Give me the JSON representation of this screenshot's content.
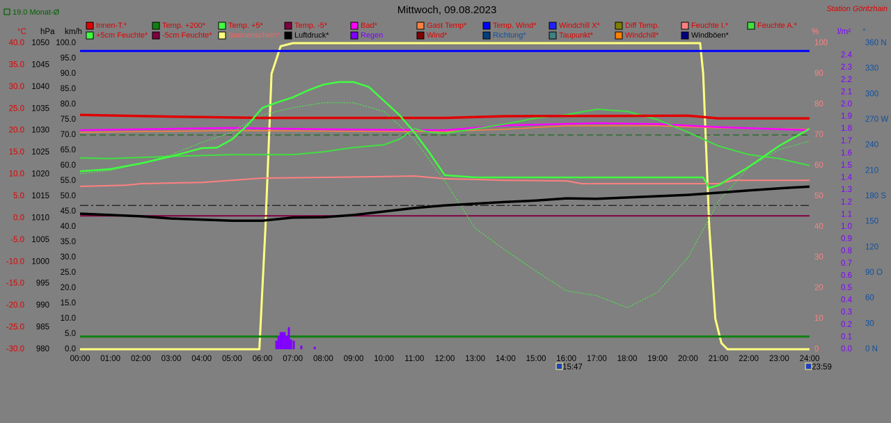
{
  "chart_data": {
    "type": "line",
    "title": "Mittwoch, 09.08.2023",
    "station": "Station Göritzhain",
    "xlim": [
      0,
      24
    ],
    "xticks": [
      {
        "value": 0,
        "label": "00:00"
      },
      {
        "value": 1,
        "label": "01:00"
      },
      {
        "value": 2,
        "label": "02:00"
      },
      {
        "value": 3,
        "label": "03:00"
      },
      {
        "value": 4,
        "label": "04:00"
      },
      {
        "value": 5,
        "label": "05:00"
      },
      {
        "value": 6,
        "label": "06:00"
      },
      {
        "value": 7,
        "label": "07:00"
      },
      {
        "value": 8,
        "label": "08:00"
      },
      {
        "value": 9,
        "label": "09:00"
      },
      {
        "value": 10,
        "label": "10:00"
      },
      {
        "value": 11,
        "label": "11:00"
      },
      {
        "value": 12,
        "label": "12:00"
      },
      {
        "value": 13,
        "label": "13:00"
      },
      {
        "value": 14,
        "label": "14:00"
      },
      {
        "value": 15,
        "label": "15:00"
      },
      {
        "value": 16,
        "label": "16:00"
      },
      {
        "value": 17,
        "label": "17:00"
      },
      {
        "value": 18,
        "label": "18:00"
      },
      {
        "value": 19,
        "label": "19:00"
      },
      {
        "value": 20,
        "label": "20:00"
      },
      {
        "value": 21,
        "label": "21:00"
      },
      {
        "value": 22,
        "label": "22:00"
      },
      {
        "value": 23,
        "label": "23:00"
      },
      {
        "value": 24,
        "label": "24:00"
      }
    ],
    "y_axes": [
      {
        "id": "c",
        "label": "°C",
        "side": "left",
        "color": "#e00000",
        "ylim": [
          -30,
          40
        ],
        "yticks": [
          {
            "value": 40,
            "label": "40.0"
          },
          {
            "value": 35,
            "label": "35.0"
          },
          {
            "value": 30,
            "label": "30.0"
          },
          {
            "value": 25,
            "label": "25.0"
          },
          {
            "value": 20,
            "label": "20.0"
          },
          {
            "value": 15,
            "label": "15.0"
          },
          {
            "value": 10,
            "label": "10.0"
          },
          {
            "value": 5,
            "label": "5.0"
          },
          {
            "value": 0,
            "label": "0.0"
          },
          {
            "value": -5,
            "label": "-5.0"
          },
          {
            "value": -10,
            "label": "-10.0"
          },
          {
            "value": -15,
            "label": "-15.0"
          },
          {
            "value": -20,
            "label": "-20.0"
          },
          {
            "value": -25,
            "label": "-25.0"
          },
          {
            "value": -30,
            "label": "-30.0"
          }
        ]
      },
      {
        "id": "hpa",
        "label": "hPa",
        "side": "left",
        "color": "#000000",
        "ylim": [
          980,
          1050
        ],
        "yticks": [
          1050,
          1045,
          1040,
          1035,
          1030,
          1025,
          1020,
          1015,
          1010,
          1005,
          1000,
          995,
          990,
          985,
          980
        ]
      },
      {
        "id": "kmh",
        "label": "km/h",
        "side": "left",
        "color": "#000000",
        "ylim": [
          0,
          100
        ],
        "yticks": [
          {
            "value": 100,
            "label": "100.0"
          },
          {
            "value": 95,
            "label": "95.0"
          },
          {
            "value": 90,
            "label": "90.0"
          },
          {
            "value": 85,
            "label": "85.0"
          },
          {
            "value": 80,
            "label": "80.0"
          },
          {
            "value": 75,
            "label": "75.0"
          },
          {
            "value": 70,
            "label": "70.0"
          },
          {
            "value": 65,
            "label": "65.0"
          },
          {
            "value": 60,
            "label": "60.0"
          },
          {
            "value": 55,
            "label": "55.0"
          },
          {
            "value": 50,
            "label": "50.0"
          },
          {
            "value": 45,
            "label": "45.0"
          },
          {
            "value": 40,
            "label": "40.0"
          },
          {
            "value": 35,
            "label": "35.0"
          },
          {
            "value": 30,
            "label": "30.0"
          },
          {
            "value": 25,
            "label": "25.0"
          },
          {
            "value": 20,
            "label": "20.0"
          },
          {
            "value": 15,
            "label": "15.0"
          },
          {
            "value": 10,
            "label": "10.0"
          },
          {
            "value": 5,
            "label": "5.0"
          },
          {
            "value": 0,
            "label": "0.0"
          }
        ]
      },
      {
        "id": "pct",
        "label": "%",
        "side": "right",
        "color": "#ff8080",
        "ylim": [
          0,
          100
        ],
        "yticks": [
          100,
          90,
          80,
          70,
          60,
          50,
          40,
          30,
          20,
          10,
          0
        ]
      },
      {
        "id": "rain",
        "label": "l/m²",
        "side": "right",
        "color": "#8000ff",
        "ylim": [
          0,
          2.5
        ],
        "yticks": [
          2.4,
          2.3,
          2.2,
          2.1,
          {
            "value": 2,
            "label": "2.0"
          },
          1.9,
          1.8,
          1.7,
          1.6,
          1.5,
          1.4,
          1.3,
          1.2,
          1.1,
          {
            "value": 1,
            "label": "1.0"
          },
          0.9,
          0.8,
          0.7,
          0.6,
          0.5,
          0.4,
          0.3,
          0.2,
          0.1,
          {
            "value": 0,
            "label": "0.0"
          }
        ]
      },
      {
        "id": "deg",
        "label": "°",
        "side": "right",
        "color": "#1050a0",
        "ylim": [
          0,
          360
        ],
        "yticks": [
          {
            "value": 360,
            "label": "360 N"
          },
          330,
          300,
          {
            "value": 270,
            "label": "270 W"
          },
          240,
          210,
          {
            "value": 180,
            "label": "180 S"
          },
          150,
          120,
          {
            "value": 90,
            "label": "90  O"
          },
          60,
          30,
          {
            "value": 0,
            "label": "0   N"
          }
        ]
      }
    ],
    "reference_lines": [
      {
        "label": "19.0 Monat-Ø",
        "value": 19.0,
        "axis": "c",
        "color": "#006000",
        "dash": "9 5"
      },
      {
        "value": 1012.9,
        "axis": "hpa",
        "color": "#000000",
        "dash": "12 4 3 4"
      }
    ],
    "series": [
      {
        "name": "Innen-T.*",
        "color": "#e00000",
        "label_color": "#e00000",
        "axis": "c",
        "width": 3.5,
        "x": [
          0,
          3,
          6,
          12,
          14,
          20,
          21,
          24
        ],
        "values": [
          23.6,
          23.2,
          22.9,
          22.9,
          23.3,
          23.4,
          22.8,
          22.8
        ]
      },
      {
        "name": "Temp. +200*",
        "color": "#108010",
        "label_color": "#e00000",
        "axis": "c",
        "width": 3,
        "x": [
          0,
          24
        ],
        "values": [
          -27.1,
          -27.1
        ]
      },
      {
        "name": "Temp. +5*",
        "color": "#40ff40",
        "label_color": "#e00000",
        "axis": "c",
        "width": 2.5,
        "x": [
          0,
          1,
          2,
          3,
          4,
          4.5,
          5,
          5.5,
          6,
          6.5,
          7,
          7.5,
          8,
          8.5,
          9,
          9.5,
          10,
          10.5,
          11,
          11.5,
          12,
          13,
          20.5,
          20.7,
          21,
          22,
          23,
          24
        ],
        "values": [
          10.7,
          11.2,
          12.5,
          14.1,
          16.0,
          16.1,
          18.0,
          21.2,
          25.2,
          26.5,
          27.6,
          29.2,
          30.5,
          31.1,
          31.1,
          30.0,
          26.8,
          23.6,
          19.6,
          14.9,
          9.8,
          9.3,
          9.3,
          6.9,
          7.5,
          11.7,
          16.5,
          20.4
        ]
      },
      {
        "name": "Temp. -5*",
        "color": "#800040",
        "label_color": "#e00000",
        "axis": "c",
        "width": 2,
        "x": [
          0,
          24
        ],
        "values": [
          0.5,
          0.5
        ]
      },
      {
        "name": "Bad*",
        "color": "#ff00ff",
        "label_color": "#e00000",
        "axis": "c",
        "width": 2.5,
        "x": [
          0,
          5,
          8,
          12,
          14,
          17,
          19,
          21,
          24
        ],
        "values": [
          20.1,
          20.6,
          20.3,
          20.1,
          21.2,
          21.7,
          21.5,
          20.8,
          20.1
        ]
      },
      {
        "name": "Gast Temp*",
        "color": "#ff8040",
        "label_color": "#e00000",
        "axis": "c",
        "width": 1.5,
        "x": [
          0,
          5,
          10,
          12,
          14,
          16,
          19,
          21,
          24
        ],
        "values": [
          19.6,
          20.0,
          19.8,
          19.8,
          20.3,
          21.1,
          21.1,
          20.6,
          20.3
        ]
      },
      {
        "name": "Temp. Wind*",
        "color": "#0000ff",
        "label_color": "#e00000",
        "axis": "c",
        "width": 3,
        "x": [
          0,
          24
        ],
        "values": [
          38.2,
          38.2
        ]
      },
      {
        "name": "Windchill X*",
        "color": "#2020ff",
        "label_color": "#e00000",
        "axis": "c"
      },
      {
        "name": "Diff Temp.",
        "color": "#808000",
        "label_color": "#e00000",
        "axis": "c"
      },
      {
        "name": "Feuchte I.*",
        "color": "#ff8080",
        "label_color": "#e00000",
        "axis": "pct",
        "width": 2,
        "x": [
          0,
          1.5,
          2,
          4,
          5,
          6,
          10,
          11,
          12,
          14,
          16,
          16.5,
          21,
          21.5,
          24
        ],
        "values": [
          53.2,
          53.6,
          54.1,
          54.5,
          55.2,
          55.9,
          56.4,
          56.6,
          55.7,
          55.2,
          55.0,
          54.1,
          54.1,
          55.2,
          55.2
        ]
      },
      {
        "name": "Feuchte A.*",
        "color": "#40e040",
        "label_color": "#e00000",
        "axis": "pct",
        "width": 2,
        "x": [
          0,
          1,
          3,
          5,
          7,
          8,
          9,
          10,
          10.5,
          11,
          11.5,
          12,
          13,
          14,
          15,
          16,
          17,
          18,
          19,
          20,
          21,
          22,
          23,
          24
        ],
        "values": [
          62.5,
          62.3,
          63.0,
          63.6,
          63.6,
          64.5,
          65.9,
          66.8,
          68.6,
          72.0,
          70.9,
          70.5,
          72.0,
          73.6,
          75.5,
          76.6,
          78.4,
          77.7,
          75.0,
          70.9,
          66.4,
          63.6,
          62.3,
          60.0
        ]
      },
      {
        "name": "+5cm Feuchte*",
        "color": "#40ff40",
        "label_color": "#e00000",
        "axis": "pct",
        "width": 1,
        "dash": "2 2",
        "x": [
          0,
          1,
          2,
          3,
          4,
          5,
          6,
          7,
          8,
          9,
          10,
          11,
          12,
          13,
          14,
          15,
          16,
          17,
          18,
          19,
          20,
          21,
          22,
          23,
          24
        ],
        "values": [
          57.3,
          58.4,
          60.7,
          63.6,
          67.5,
          70.9,
          76.6,
          78.9,
          80.5,
          80.5,
          77.7,
          68.6,
          55.0,
          39.5,
          32.3,
          25.5,
          19.1,
          17.5,
          13.6,
          18.6,
          30.0,
          48.2,
          59.5,
          65.2,
          68.0
        ]
      },
      {
        "name": "-5cm Feuchte*",
        "color": "#800040",
        "label_color": "#e00000",
        "axis": "pct"
      },
      {
        "name": "Sonnenschein*",
        "color": "#ffff80",
        "label_color": "#ff6060",
        "axis": "pct",
        "width": 3,
        "x": [
          0,
          5.9,
          6.1,
          6.3,
          6.6,
          7,
          20.4,
          20.5,
          20.7,
          20.9,
          21.1,
          21.3,
          24
        ],
        "values": [
          0,
          0,
          40,
          90,
          99,
          100,
          100,
          90,
          40,
          10,
          2,
          0,
          0
        ]
      },
      {
        "name": "Luftdruck*",
        "color": "#000000",
        "label_color": "#000000",
        "axis": "hpa",
        "width": 3.5,
        "x": [
          0,
          2,
          3,
          5,
          6,
          7,
          8,
          9,
          10,
          11,
          12,
          13,
          14,
          15,
          16,
          17,
          18,
          19,
          20,
          21,
          22,
          23,
          24
        ],
        "values": [
          1011.0,
          1010.4,
          1009.9,
          1009.4,
          1009.4,
          1010.1,
          1010.2,
          1010.7,
          1011.5,
          1012.3,
          1012.9,
          1013.3,
          1013.7,
          1014.0,
          1014.5,
          1014.4,
          1014.7,
          1015.0,
          1015.3,
          1015.8,
          1016.3,
          1016.8,
          1017.2
        ]
      },
      {
        "name": "Regen",
        "color": "#8000ff",
        "label_color": "#8000ff",
        "axis": "rain",
        "kind": "bar",
        "x": [
          6.46,
          6.53,
          6.6,
          6.66,
          6.73,
          6.8,
          6.87,
          6.94,
          7.03,
          7.28,
          7.72
        ],
        "values": [
          0.07,
          0.11,
          0.14,
          0.14,
          0.14,
          0.11,
          0.18,
          0.08,
          0.07,
          0.03,
          0.02
        ]
      },
      {
        "name": "Wind*",
        "color": "#800000",
        "label_color": "#e00000",
        "axis": "kmh"
      },
      {
        "name": "Richtung*",
        "color": "#004080",
        "label_color": "#1050a0",
        "axis": "deg"
      },
      {
        "name": "Taupunkt*",
        "color": "#408080",
        "label_color": "#e00000",
        "axis": "c"
      },
      {
        "name": "Windchill*",
        "color": "#ff8000",
        "label_color": "#e00000",
        "axis": "c"
      },
      {
        "name": "Windböen*",
        "color": "#000080",
        "label_color": "#000000",
        "axis": "kmh"
      }
    ],
    "markers": [
      {
        "x": 15.78,
        "label": "15:47"
      },
      {
        "x": 23.98,
        "label": "23:59"
      }
    ]
  }
}
